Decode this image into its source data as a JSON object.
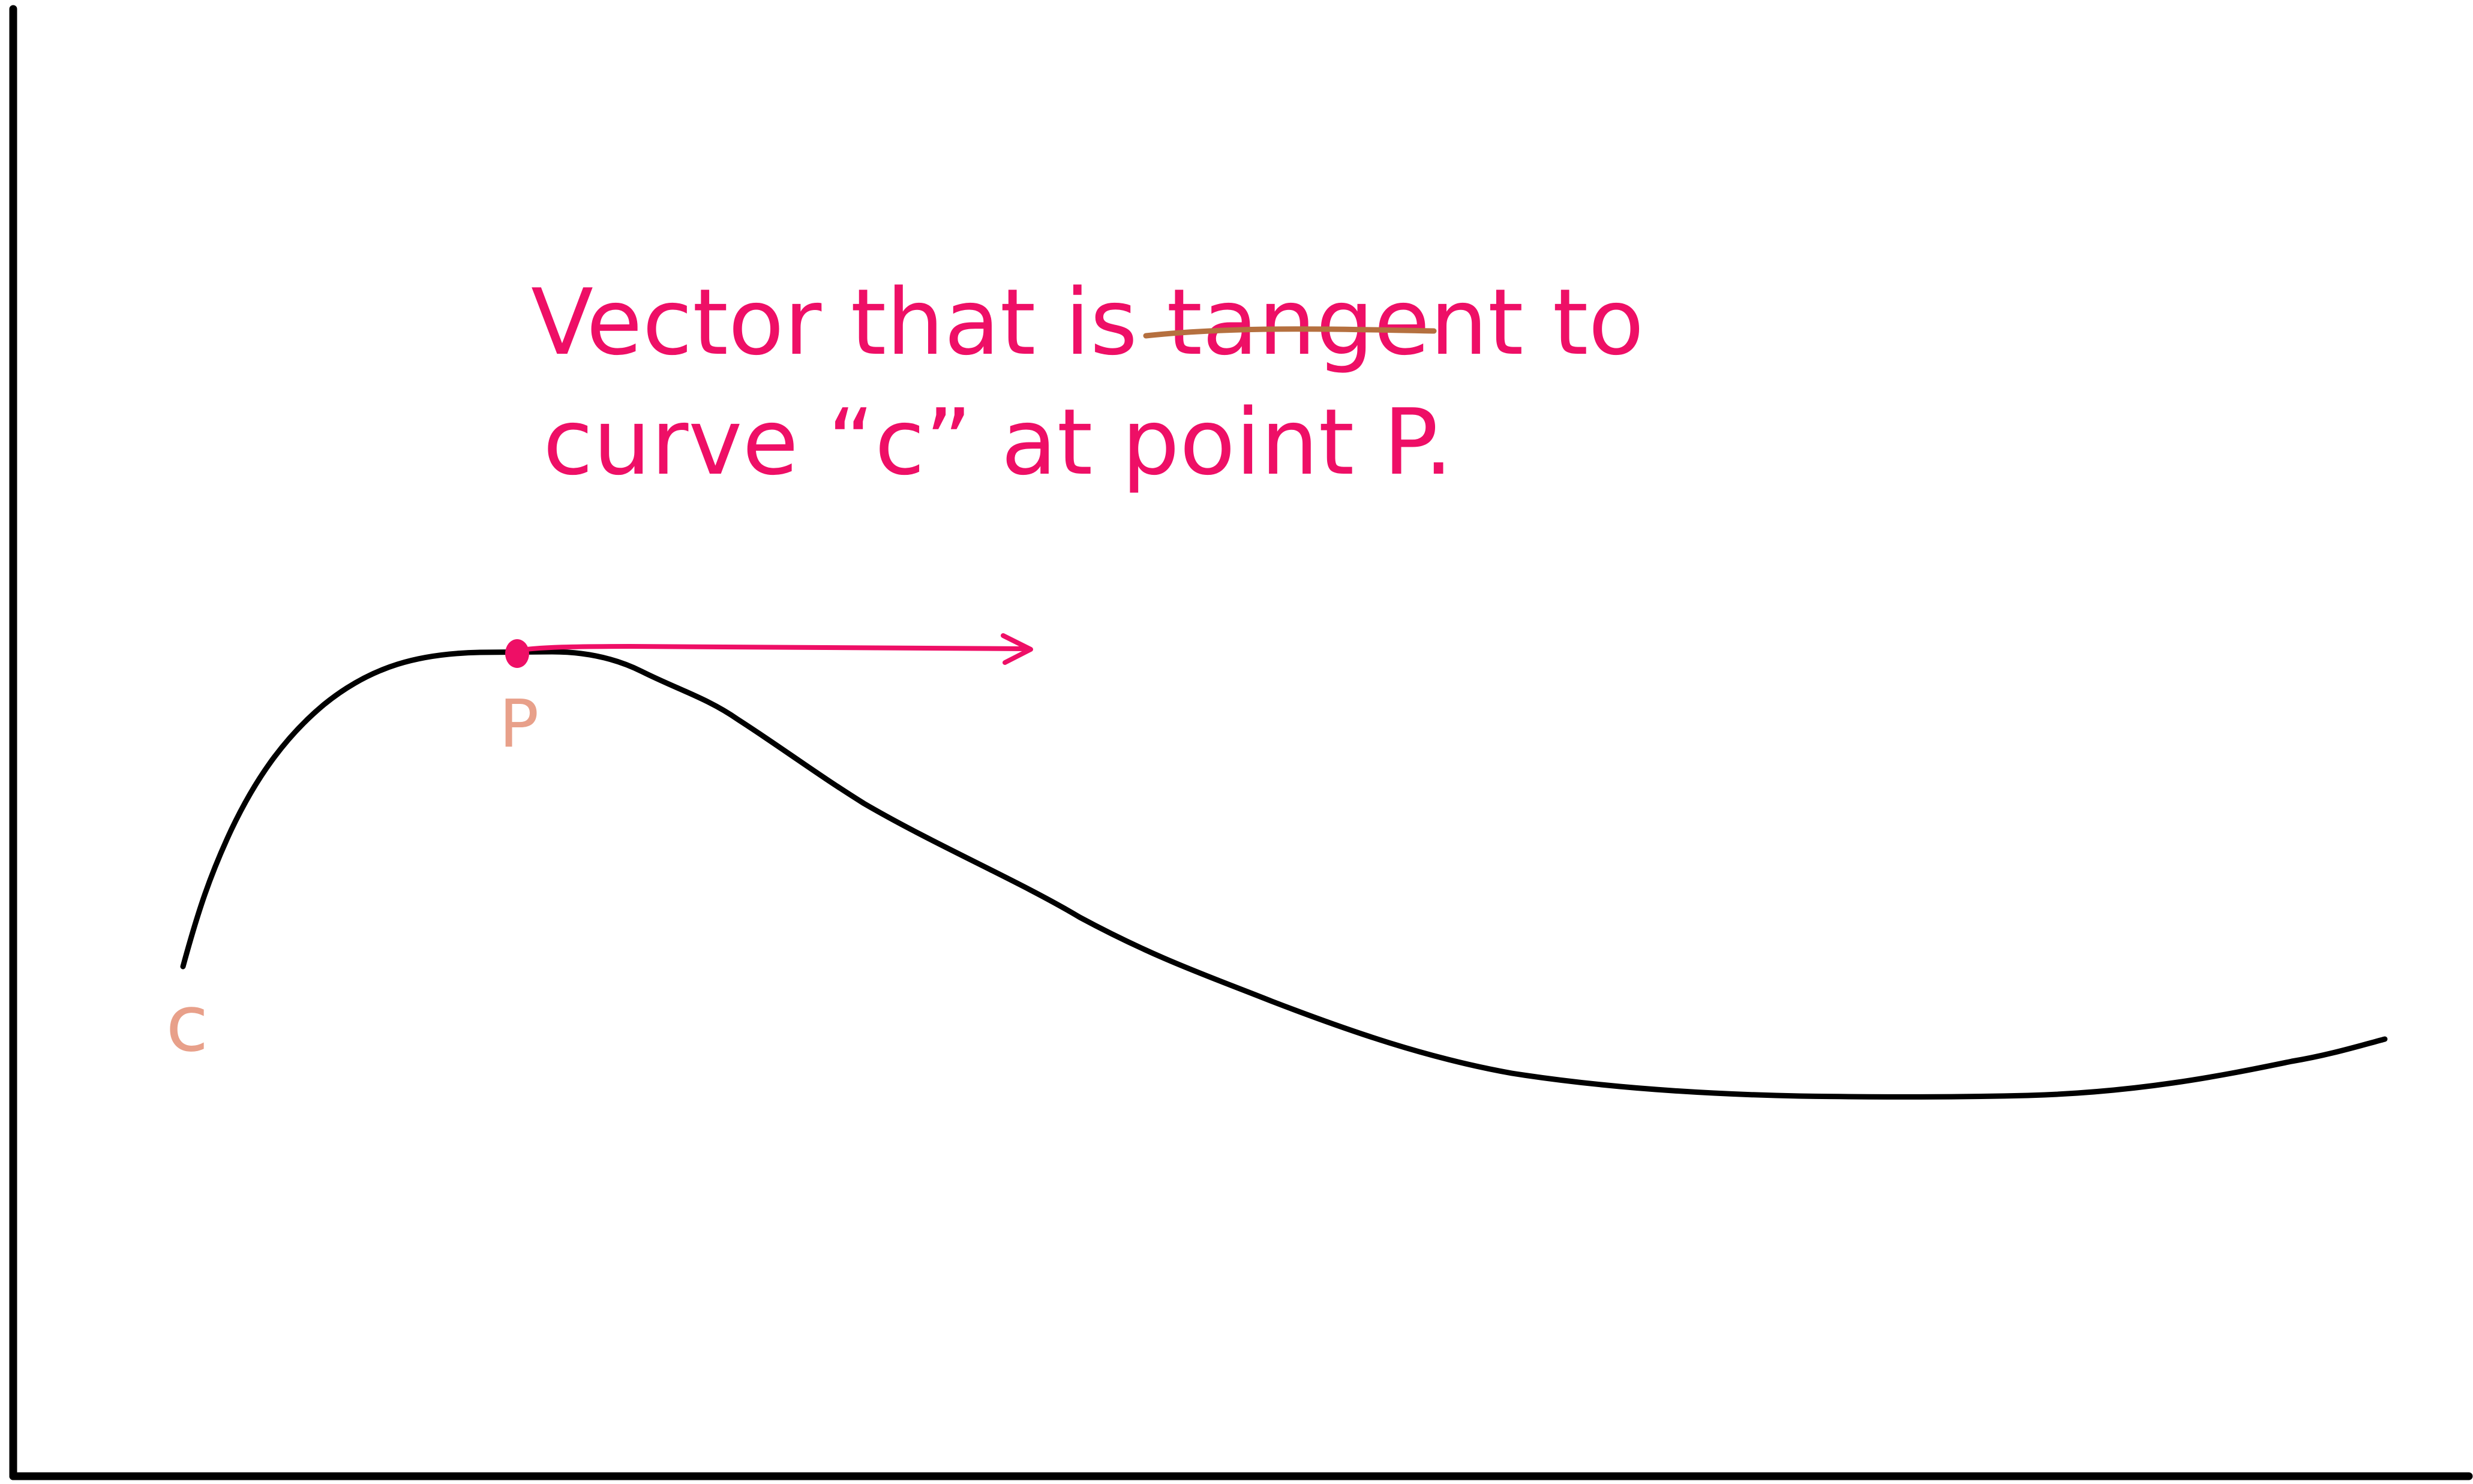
{
  "annotation": {
    "line1_before": "Vector that is ",
    "line1_emphasis": "tangent",
    "line1_after": " to",
    "line2": "curve “c” at point P."
  },
  "labels": {
    "curve": "c",
    "point": "P"
  },
  "colors": {
    "axes": "#000000",
    "curve": "#000000",
    "annotation": "#ee0f66",
    "vector": "#ee0f66",
    "point_marker": "#ee0f66",
    "labels": "#e8a08a",
    "underline": "#b5703f"
  }
}
